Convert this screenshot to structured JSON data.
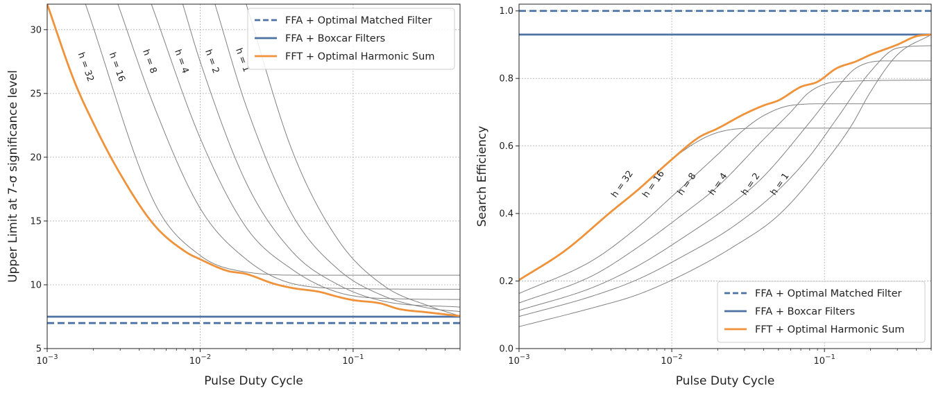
{
  "chart_data": [
    {
      "type": "line",
      "xlabel": "Pulse Duty Cycle",
      "ylabel": "Upper Limit at 7-σ significance level",
      "xscale": "log",
      "xlim": [
        0.001,
        0.5
      ],
      "ylim": [
        5,
        32
      ],
      "xticks": [
        {
          "base": "10",
          "exp": "−3"
        },
        {
          "base": "10",
          "exp": "−2"
        },
        {
          "base": "10",
          "exp": "−1"
        }
      ],
      "yticks": [
        "5",
        "10",
        "15",
        "20",
        "25",
        "30"
      ],
      "grid": true,
      "legend_position": "top-right",
      "legend": [
        "FFA + Optimal Matched Filter",
        "FFA + Boxcar Filters",
        "FFT + Optimal Harmonic Sum"
      ],
      "colors": {
        "ffa": "#4c72a4",
        "fft": "#f0923a",
        "harmonics": "#808080"
      },
      "reference_lines": [
        {
          "name": "FFA + Optimal Matched Filter",
          "y": 7.0,
          "style": "dashed"
        },
        {
          "name": "FFA + Boxcar Filters",
          "y": 7.5,
          "style": "solid"
        }
      ],
      "harmonic_curves": [
        {
          "label": "h = 32",
          "x": [
            0.00178,
            0.005,
            0.01,
            0.02,
            0.05,
            0.1,
            0.5
          ],
          "y": [
            32,
            16.5,
            12.3,
            11.0,
            10.75,
            10.75,
            10.75
          ]
        },
        {
          "label": "h = 16",
          "x": [
            0.0029,
            0.005,
            0.01,
            0.02,
            0.04,
            0.1,
            0.5
          ],
          "y": [
            32,
            24.0,
            16.0,
            12.0,
            10.1,
            9.7,
            9.65
          ]
        },
        {
          "label": "h = 8",
          "x": [
            0.0048,
            0.01,
            0.02,
            0.04,
            0.08,
            0.2,
            0.5
          ],
          "y": [
            32,
            21.5,
            14.5,
            11.2,
            9.4,
            8.9,
            8.85
          ]
        },
        {
          "label": "h = 4",
          "x": [
            0.0077,
            0.01,
            0.02,
            0.04,
            0.08,
            0.16,
            0.5
          ],
          "y": [
            32,
            27.5,
            18.0,
            12.6,
            10.0,
            8.7,
            8.25
          ]
        },
        {
          "label": "h = 2",
          "x": [
            0.0125,
            0.02,
            0.04,
            0.08,
            0.16,
            0.32,
            0.5
          ],
          "y": [
            32,
            24.0,
            15.5,
            11.2,
            9.1,
            8.15,
            7.9
          ]
        },
        {
          "label": "h = 1",
          "x": [
            0.02,
            0.04,
            0.08,
            0.16,
            0.32,
            0.5
          ],
          "y": [
            32,
            20.5,
            13.5,
            9.9,
            8.3,
            7.55
          ]
        }
      ],
      "fft_curve": {
        "name": "FFT + Optimal Harmonic Sum",
        "x": [
          0.001,
          0.0015,
          0.002,
          0.003,
          0.005,
          0.008,
          0.01,
          0.015,
          0.02,
          0.03,
          0.04,
          0.06,
          0.08,
          0.1,
          0.15,
          0.2,
          0.3,
          0.5
        ],
        "y": [
          32,
          26.0,
          22.7,
          18.7,
          14.7,
          12.6,
          12.0,
          11.1,
          10.85,
          10.1,
          9.75,
          9.45,
          9.05,
          8.8,
          8.55,
          8.1,
          7.85,
          7.55
        ]
      }
    },
    {
      "type": "line",
      "xlabel": "Pulse Duty Cycle",
      "ylabel": "Search Efficiency",
      "xscale": "log",
      "xlim": [
        0.001,
        0.5
      ],
      "ylim": [
        0.0,
        1.02
      ],
      "xticks": [
        {
          "base": "10",
          "exp": "−3"
        },
        {
          "base": "10",
          "exp": "−2"
        },
        {
          "base": "10",
          "exp": "−1"
        }
      ],
      "yticks": [
        "0.0",
        "0.2",
        "0.4",
        "0.6",
        "0.8",
        "1.0"
      ],
      "grid": true,
      "legend_position": "bottom-right",
      "legend": [
        "FFA + Optimal Matched Filter",
        "FFA + Boxcar Filters",
        "FFT + Optimal Harmonic Sum"
      ],
      "colors": {
        "ffa": "#4c72a4",
        "fft": "#f0923a",
        "harmonics": "#808080"
      },
      "reference_lines": [
        {
          "name": "FFA + Optimal Matched Filter",
          "y": 1.0,
          "style": "dashed"
        },
        {
          "name": "FFA + Boxcar Filters",
          "y": 0.93,
          "style": "solid"
        }
      ],
      "harmonic_curves": [
        {
          "label": "h = 32",
          "x": [
            0.001,
            0.002,
            0.004,
            0.006,
            0.01,
            0.015,
            0.02,
            0.03,
            0.05,
            0.5
          ],
          "y": [
            0.203,
            0.29,
            0.405,
            0.47,
            0.56,
            0.615,
            0.64,
            0.652,
            0.653,
            0.653
          ]
        },
        {
          "label": "h = 16",
          "x": [
            0.001,
            0.003,
            0.006,
            0.01,
            0.02,
            0.03,
            0.04,
            0.06,
            0.1,
            0.5
          ],
          "y": [
            0.163,
            0.26,
            0.36,
            0.45,
            0.575,
            0.65,
            0.69,
            0.72,
            0.725,
            0.725
          ]
        },
        {
          "label": "h = 8",
          "x": [
            0.001,
            0.003,
            0.006,
            0.012,
            0.02,
            0.04,
            0.06,
            0.08,
            0.12,
            0.5
          ],
          "y": [
            0.135,
            0.215,
            0.3,
            0.4,
            0.48,
            0.62,
            0.7,
            0.76,
            0.79,
            0.795
          ]
        },
        {
          "label": "h = 4",
          "x": [
            0.001,
            0.003,
            0.006,
            0.012,
            0.025,
            0.04,
            0.08,
            0.12,
            0.16,
            0.25,
            0.5
          ],
          "y": [
            0.113,
            0.18,
            0.245,
            0.33,
            0.43,
            0.51,
            0.67,
            0.77,
            0.83,
            0.852,
            0.852
          ]
        },
        {
          "label": "h = 2",
          "x": [
            0.001,
            0.003,
            0.006,
            0.012,
            0.025,
            0.05,
            0.08,
            0.12,
            0.2,
            0.3,
            0.5
          ],
          "y": [
            0.095,
            0.155,
            0.205,
            0.275,
            0.36,
            0.47,
            0.57,
            0.68,
            0.82,
            0.89,
            0.897
          ]
        },
        {
          "label": "h = 1",
          "x": [
            0.001,
            0.003,
            0.006,
            0.012,
            0.025,
            0.05,
            0.1,
            0.15,
            0.2,
            0.3,
            0.5
          ],
          "y": [
            0.065,
            0.12,
            0.16,
            0.22,
            0.3,
            0.395,
            0.55,
            0.66,
            0.76,
            0.87,
            0.93
          ]
        }
      ],
      "fft_curve": {
        "name": "FFT + Optimal Harmonic Sum",
        "x": [
          0.001,
          0.002,
          0.004,
          0.006,
          0.01,
          0.015,
          0.02,
          0.03,
          0.04,
          0.05,
          0.07,
          0.09,
          0.12,
          0.16,
          0.2,
          0.3,
          0.4,
          0.5
        ],
        "y": [
          0.203,
          0.29,
          0.405,
          0.47,
          0.56,
          0.625,
          0.652,
          0.695,
          0.72,
          0.735,
          0.775,
          0.79,
          0.83,
          0.85,
          0.87,
          0.9,
          0.925,
          0.93
        ]
      }
    }
  ]
}
